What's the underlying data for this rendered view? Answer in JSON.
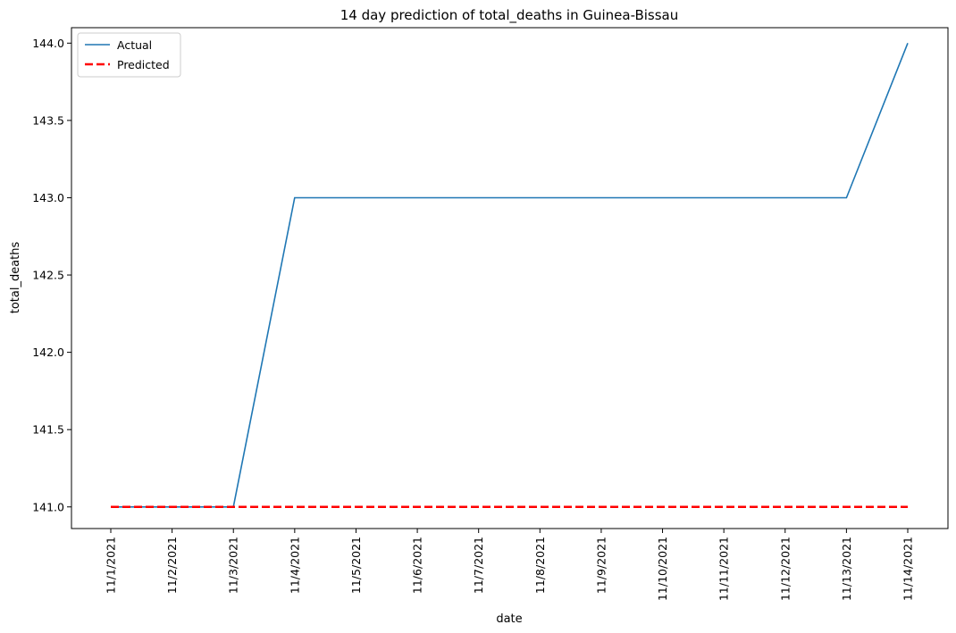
{
  "chart_data": {
    "type": "line",
    "title": "14 day prediction of total_deaths in Guinea-Bissau",
    "xlabel": "date",
    "ylabel": "total_deaths",
    "categories": [
      "11/1/2021",
      "11/2/2021",
      "11/3/2021",
      "11/4/2021",
      "11/5/2021",
      "11/6/2021",
      "11/7/2021",
      "11/8/2021",
      "11/9/2021",
      "11/10/2021",
      "11/11/2021",
      "11/12/2021",
      "11/13/2021",
      "11/14/2021"
    ],
    "yticks": [
      "141.0",
      "141.5",
      "142.0",
      "142.5",
      "143.0",
      "143.5",
      "144.0"
    ],
    "ylim": [
      140.86,
      144.1
    ],
    "grid": false,
    "legend_position": "top-left",
    "series": [
      {
        "name": "Actual",
        "color": "#1f77b4",
        "style": "solid",
        "values": [
          141,
          141,
          141,
          143,
          143,
          143,
          143,
          143,
          143,
          143,
          143,
          143,
          143,
          144
        ]
      },
      {
        "name": "Predicted",
        "color": "#ff0000",
        "style": "dashed",
        "values": [
          141,
          141,
          141,
          141,
          141,
          141,
          141,
          141,
          141,
          141,
          141,
          141,
          141,
          141
        ]
      }
    ]
  }
}
